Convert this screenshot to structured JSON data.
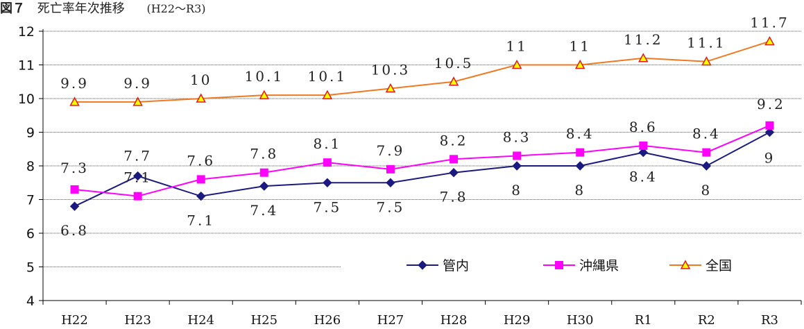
{
  "header": {
    "figure_no": "図７",
    "title": "死亡率年次推移",
    "range": "(H22～R3)"
  },
  "chart_data": {
    "type": "line",
    "title": "死亡率年次推移",
    "categories": [
      "H22",
      "H23",
      "H24",
      "H25",
      "H26",
      "H27",
      "H28",
      "H29",
      "H30",
      "R1",
      "R2",
      "R3"
    ],
    "ylim": [
      4,
      12
    ],
    "yticks": [
      "4",
      "5",
      "6",
      "7",
      "8",
      "9",
      "10",
      "11",
      "12"
    ],
    "grid": true,
    "legend_position": "bottom-right",
    "series": [
      {
        "name": "管内",
        "color": "#1a1a80",
        "marker": "diamond",
        "values": [
          6.8,
          7.7,
          7.1,
          7.4,
          7.5,
          7.5,
          7.8,
          8,
          8,
          8.4,
          8,
          9
        ],
        "labels": [
          "6.8",
          "7.7",
          "7.1",
          "7.4",
          "7.5",
          "7.5",
          "7.8",
          "8",
          "8",
          "8.4",
          "8",
          "9"
        ]
      },
      {
        "name": "沖縄県",
        "color": "#ff00ff",
        "marker": "square",
        "values": [
          7.3,
          7.1,
          7.6,
          7.8,
          8.1,
          7.9,
          8.2,
          8.3,
          8.4,
          8.6,
          8.4,
          9.2
        ],
        "labels": [
          "7.3",
          "7.1",
          "7.6",
          "7.8",
          "8.1",
          "7.9",
          "8.2",
          "8.3",
          "8.4",
          "8.6",
          "8.4",
          "9.2"
        ]
      },
      {
        "name": "全国",
        "color": "#f07820",
        "marker": "triangle",
        "marker_fill": "#ffff00",
        "values": [
          9.9,
          9.9,
          10,
          10.1,
          10.1,
          10.3,
          10.5,
          11,
          11,
          11.2,
          11.1,
          11.7
        ],
        "labels": [
          "9.9",
          "9.9",
          "10",
          "10.1",
          "10.1",
          "10.3",
          "10.5",
          "11",
          "11",
          "11.2",
          "11.1",
          "11.7"
        ]
      }
    ]
  }
}
